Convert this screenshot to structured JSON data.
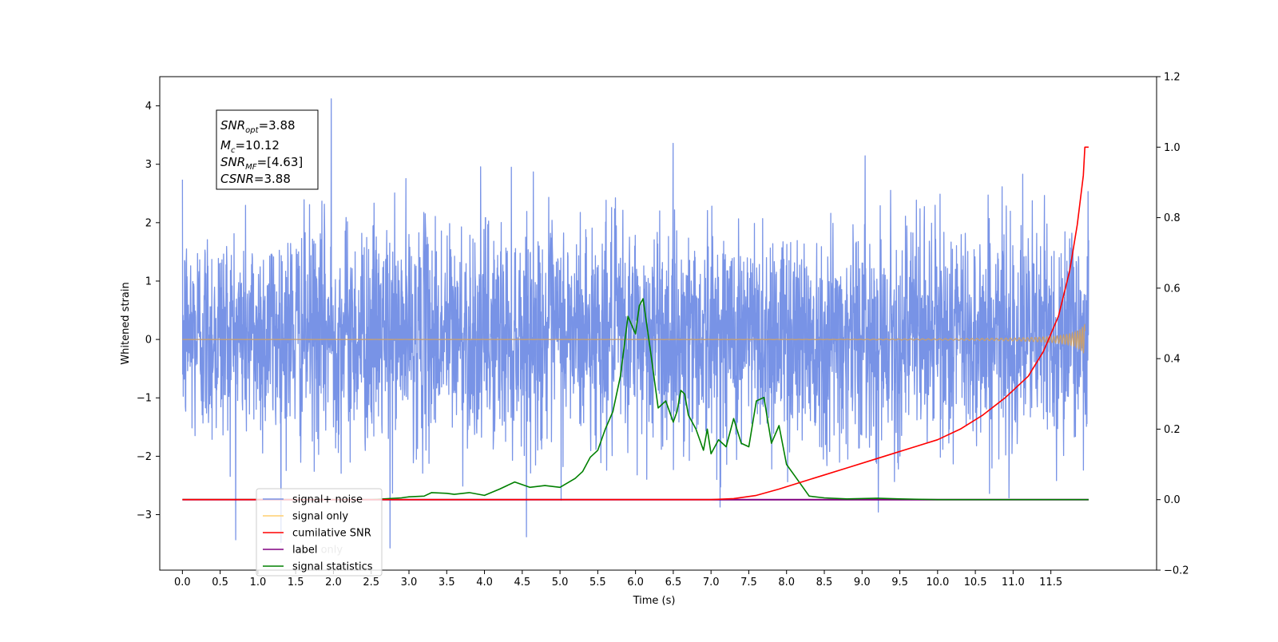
{
  "chart_data": {
    "type": "line",
    "xlabel": "Time (s)",
    "ylabel": "Whitened strain",
    "xlim": [
      -0.3,
      12.9
    ],
    "ylim": [
      -3.95,
      4.5
    ],
    "y2lim": [
      -0.2,
      1.2
    ],
    "grid": false,
    "x_ticks": [
      "0.0",
      "0.5",
      "1.0",
      "1.5",
      "2.0",
      "2.5",
      "3.0",
      "3.5",
      "4.0",
      "4.5",
      "5.0",
      "5.5",
      "6.0",
      "6.5",
      "7.0",
      "7.5",
      "8.0",
      "8.5",
      "9.0",
      "9.5",
      "10.0",
      "10.5",
      "11.0",
      "11.5"
    ],
    "y_ticks": [
      "4",
      "3",
      "2",
      "1",
      "0",
      "−1",
      "−2",
      "−3"
    ],
    "y2_ticks": [
      "1.2",
      "1.0",
      "0.8",
      "0.6",
      "0.4",
      "0.2",
      "0.0",
      "−0.2"
    ],
    "annotation": {
      "lines": [
        {
          "name": "SNR",
          "sub": "opt",
          "value": "=3.88"
        },
        {
          "name": "M",
          "sub": "c",
          "value": "=10.12"
        },
        {
          "name": "SNR",
          "sub": "MF",
          "value": "=[4.63]"
        },
        {
          "name": "CSNR",
          "sub": "",
          "value": "=3.88"
        }
      ]
    },
    "legend": {
      "placement": "lower-left",
      "entries": [
        {
          "label": "signal+ noise",
          "color": "#7893e6"
        },
        {
          "label": "signal only",
          "color": "#ffcf6e"
        },
        {
          "label": "cumilative SNR",
          "color": "#ff0000"
        },
        {
          "label": "label",
          "color": "#800080"
        },
        {
          "label": "signal statistics",
          "color": "#008000"
        }
      ],
      "hidden_label": "label only"
    },
    "series": [
      {
        "name": "signal+ noise",
        "axis": "left",
        "color": "#7893e6",
        "description_values": {
          "t_start": 0.0,
          "t_end": 12.0,
          "typical_range": [
            -1.9,
            2.3
          ],
          "max_value": 4.12,
          "max_time": 1.97,
          "min_value": -3.57,
          "min_time": 2.75
        }
      },
      {
        "name": "signal only",
        "axis": "left",
        "color": "#c8a070",
        "description_values": {
          "t_start": 0.0,
          "t_end": 11.95,
          "peak_amplitude": 0.65
        }
      },
      {
        "name": "cumilative SNR",
        "axis": "right",
        "color": "#ff0000",
        "x": [
          0,
          6.5,
          7.0,
          7.3,
          7.6,
          7.9,
          8.2,
          8.5,
          8.8,
          9.1,
          9.4,
          9.7,
          10.0,
          10.3,
          10.6,
          10.9,
          11.2,
          11.4,
          11.6,
          11.75,
          11.85,
          11.93,
          11.95,
          12.0
        ],
        "values": [
          0,
          0,
          0.0,
          0.003,
          0.012,
          0.03,
          0.05,
          0.07,
          0.09,
          0.11,
          0.13,
          0.15,
          0.17,
          0.2,
          0.24,
          0.29,
          0.35,
          0.42,
          0.52,
          0.65,
          0.78,
          0.92,
          1.0,
          1.0
        ]
      },
      {
        "name": "label",
        "axis": "right",
        "color": "#800080",
        "x": [
          0,
          12.0
        ],
        "values": [
          0,
          0
        ]
      },
      {
        "name": "signal statistics",
        "axis": "right",
        "color": "#008000",
        "x": [
          0,
          2.5,
          2.9,
          3.0,
          3.2,
          3.3,
          3.5,
          3.6,
          3.8,
          4.0,
          4.2,
          4.4,
          4.6,
          4.8,
          5.0,
          5.2,
          5.3,
          5.4,
          5.5,
          5.6,
          5.7,
          5.8,
          5.9,
          6.0,
          6.05,
          6.1,
          6.2,
          6.3,
          6.4,
          6.5,
          6.55,
          6.6,
          6.65,
          6.7,
          6.8,
          6.9,
          6.95,
          7.0,
          7.1,
          7.2,
          7.3,
          7.4,
          7.5,
          7.6,
          7.7,
          7.8,
          7.9,
          8.0,
          8.1,
          8.3,
          8.5,
          8.8,
          9.2,
          9.5,
          10.0,
          12.0
        ],
        "values": [
          0,
          0,
          0.005,
          0.008,
          0.01,
          0.02,
          0.018,
          0.015,
          0.02,
          0.012,
          0.03,
          0.05,
          0.035,
          0.04,
          0.035,
          0.06,
          0.08,
          0.12,
          0.14,
          0.2,
          0.25,
          0.35,
          0.52,
          0.47,
          0.55,
          0.57,
          0.42,
          0.26,
          0.28,
          0.22,
          0.25,
          0.31,
          0.3,
          0.24,
          0.2,
          0.14,
          0.2,
          0.13,
          0.17,
          0.15,
          0.23,
          0.16,
          0.15,
          0.28,
          0.29,
          0.16,
          0.21,
          0.1,
          0.07,
          0.01,
          0.005,
          0.002,
          0.004,
          0.002,
          0,
          0
        ]
      }
    ]
  }
}
